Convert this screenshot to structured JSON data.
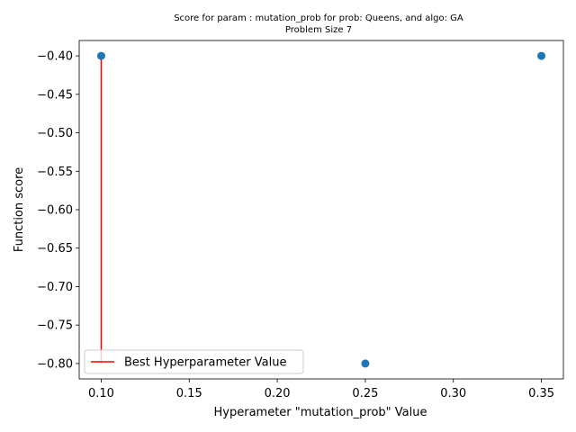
{
  "chart_data": {
    "type": "scatter",
    "title": "Score for param : mutation_prob for prob: Queens, and algo: GA",
    "subtitle": "Problem Size 7",
    "xlabel": "Hyperameter \"mutation_prob\" Value",
    "ylabel": "Function score",
    "xlim": [
      0.0875,
      0.3625
    ],
    "ylim": [
      -0.82,
      -0.38
    ],
    "xticks": [
      0.1,
      0.15,
      0.2,
      0.25,
      0.3,
      0.35
    ],
    "xtick_labels": [
      "0.10",
      "0.15",
      "0.20",
      "0.25",
      "0.30",
      "0.35"
    ],
    "yticks": [
      -0.4,
      -0.45,
      -0.5,
      -0.55,
      -0.6,
      -0.65,
      -0.7,
      -0.75,
      -0.8
    ],
    "ytick_labels": [
      "−0.40",
      "−0.45",
      "−0.50",
      "−0.55",
      "−0.60",
      "−0.65",
      "−0.70",
      "−0.75",
      "−0.80"
    ],
    "grid": false,
    "series": [
      {
        "type": "scatter",
        "color": "#1f77b4",
        "points": [
          {
            "x": 0.1,
            "y": -0.4
          },
          {
            "x": 0.25,
            "y": -0.8
          },
          {
            "x": 0.35,
            "y": -0.4
          }
        ]
      }
    ],
    "best_line": {
      "name": "Best Hyperparameter Value",
      "color": "#ff0000",
      "x": 0.1,
      "y_from": -0.8,
      "y_to": -0.4
    },
    "legend_position": "lower-left"
  }
}
